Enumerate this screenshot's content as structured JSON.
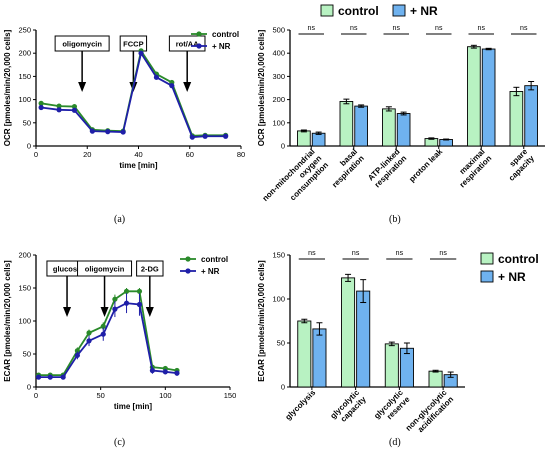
{
  "colors": {
    "control": "#2a8a2a",
    "nr": "#1f1fa8",
    "control_bar": "#b8f2c2",
    "nr_bar": "#6fb2ef"
  },
  "panel_labels": [
    "(a)",
    "(b)",
    "(c)",
    "(d)"
  ],
  "chart_data": [
    {
      "id": "a",
      "type": "line",
      "xlabel": "time [min]",
      "ylabel": "OCR [pmoles/min/20,000 cells]",
      "xlim": [
        0,
        80
      ],
      "ylim": [
        0,
        250
      ],
      "xticks": [
        0,
        20,
        40,
        60,
        80
      ],
      "yticks": [
        0,
        50,
        100,
        150,
        200,
        250
      ],
      "legend_position": "top-right",
      "grid": false,
      "annotations": [
        {
          "label": "oligomycin",
          "x": 18
        },
        {
          "label": "FCCP",
          "x": 38
        },
        {
          "label": "rot/AA",
          "x": 59
        }
      ],
      "series": [
        {
          "name": "control",
          "x": [
            2,
            9,
            15,
            22,
            28,
            34,
            41,
            47,
            53,
            61,
            66,
            74
          ],
          "y": [
            92,
            86,
            85,
            35,
            33,
            32,
            205,
            155,
            137,
            22,
            23,
            23
          ],
          "err": [
            4,
            3,
            3,
            3,
            2,
            2,
            5,
            5,
            5,
            2,
            2,
            2
          ]
        },
        {
          "name": "+ NR",
          "x": [
            2,
            9,
            15,
            22,
            28,
            34,
            41,
            47,
            53,
            61,
            66,
            74
          ],
          "y": [
            83,
            78,
            77,
            32,
            31,
            30,
            200,
            148,
            130,
            19,
            21,
            21
          ],
          "err": [
            4,
            3,
            3,
            3,
            2,
            2,
            5,
            5,
            5,
            2,
            2,
            2
          ]
        }
      ]
    },
    {
      "id": "b",
      "type": "bar",
      "ylabel": "OCR [pmoles/min/20,000 cells]",
      "ylim": [
        0,
        500
      ],
      "yticks": [
        0,
        100,
        200,
        300,
        400,
        500
      ],
      "legend_position": "top",
      "grid": false,
      "categories": [
        [
          "non-mitochondrial",
          "oxygen",
          "consumption"
        ],
        [
          "basal",
          "respiration"
        ],
        [
          "ATP-linked",
          "respiration"
        ],
        [
          "proton leak"
        ],
        [
          "maximal",
          "respiration"
        ],
        [
          "spare",
          "capacity"
        ]
      ],
      "significance": [
        "ns",
        "ns",
        "ns",
        "ns",
        "ns",
        "ns"
      ],
      "series": [
        {
          "name": "control",
          "values": [
            65,
            192,
            160,
            32,
            428,
            235
          ],
          "err": [
            4,
            10,
            9,
            3,
            6,
            18
          ]
        },
        {
          "name": "+ NR",
          "values": [
            55,
            172,
            140,
            28,
            418,
            260
          ],
          "err": [
            5,
            5,
            6,
            2,
            3,
            18
          ]
        }
      ]
    },
    {
      "id": "c",
      "type": "line",
      "xlabel": "time [min]",
      "ylabel": "ECAR [pmoles/min/20,000 cells]",
      "xlim": [
        0,
        150
      ],
      "ylim": [
        0,
        200
      ],
      "xticks": [
        0,
        50,
        100,
        150
      ],
      "yticks": [
        0,
        50,
        100,
        150,
        200
      ],
      "legend_position": "top-right",
      "grid": false,
      "annotations": [
        {
          "label": "glucose",
          "x": 24
        },
        {
          "label": "oligomycin",
          "x": 53
        },
        {
          "label": "2-DG",
          "x": 88
        }
      ],
      "series": [
        {
          "name": "control",
          "x": [
            2,
            11,
            21,
            32,
            41,
            52,
            61,
            70,
            80,
            90,
            100,
            109
          ],
          "y": [
            18,
            18,
            18,
            55,
            82,
            92,
            133,
            145,
            145,
            30,
            28,
            25
          ],
          "err": [
            3,
            3,
            3,
            5,
            5,
            6,
            7,
            5,
            5,
            4,
            3,
            3
          ]
        },
        {
          "name": "+ NR",
          "x": [
            2,
            11,
            21,
            32,
            41,
            52,
            61,
            70,
            80,
            90,
            100,
            109
          ],
          "y": [
            15,
            15,
            15,
            48,
            70,
            80,
            118,
            127,
            125,
            25,
            23,
            21
          ],
          "err": [
            3,
            3,
            3,
            6,
            8,
            10,
            12,
            15,
            17,
            5,
            4,
            4
          ]
        }
      ]
    },
    {
      "id": "d",
      "type": "bar",
      "ylabel": "ECAR [pmoles/min/20,000 cells]",
      "ylim": [
        0,
        150
      ],
      "yticks": [
        0,
        50,
        100,
        150
      ],
      "legend_position": "right",
      "grid": false,
      "categories": [
        [
          "glycolysis"
        ],
        [
          "glycolytic",
          "capacity"
        ],
        [
          "glycolytic",
          "reserve"
        ],
        [
          "non-glycolytic",
          "acidification"
        ]
      ],
      "significance": [
        "ns",
        "ns",
        "ns",
        "ns"
      ],
      "series": [
        {
          "name": "control",
          "values": [
            75,
            124,
            49,
            18
          ],
          "err": [
            2,
            4,
            2,
            1
          ]
        },
        {
          "name": "+ NR",
          "values": [
            66,
            109,
            44,
            14
          ],
          "err": [
            7,
            13,
            6,
            3
          ]
        }
      ]
    }
  ]
}
